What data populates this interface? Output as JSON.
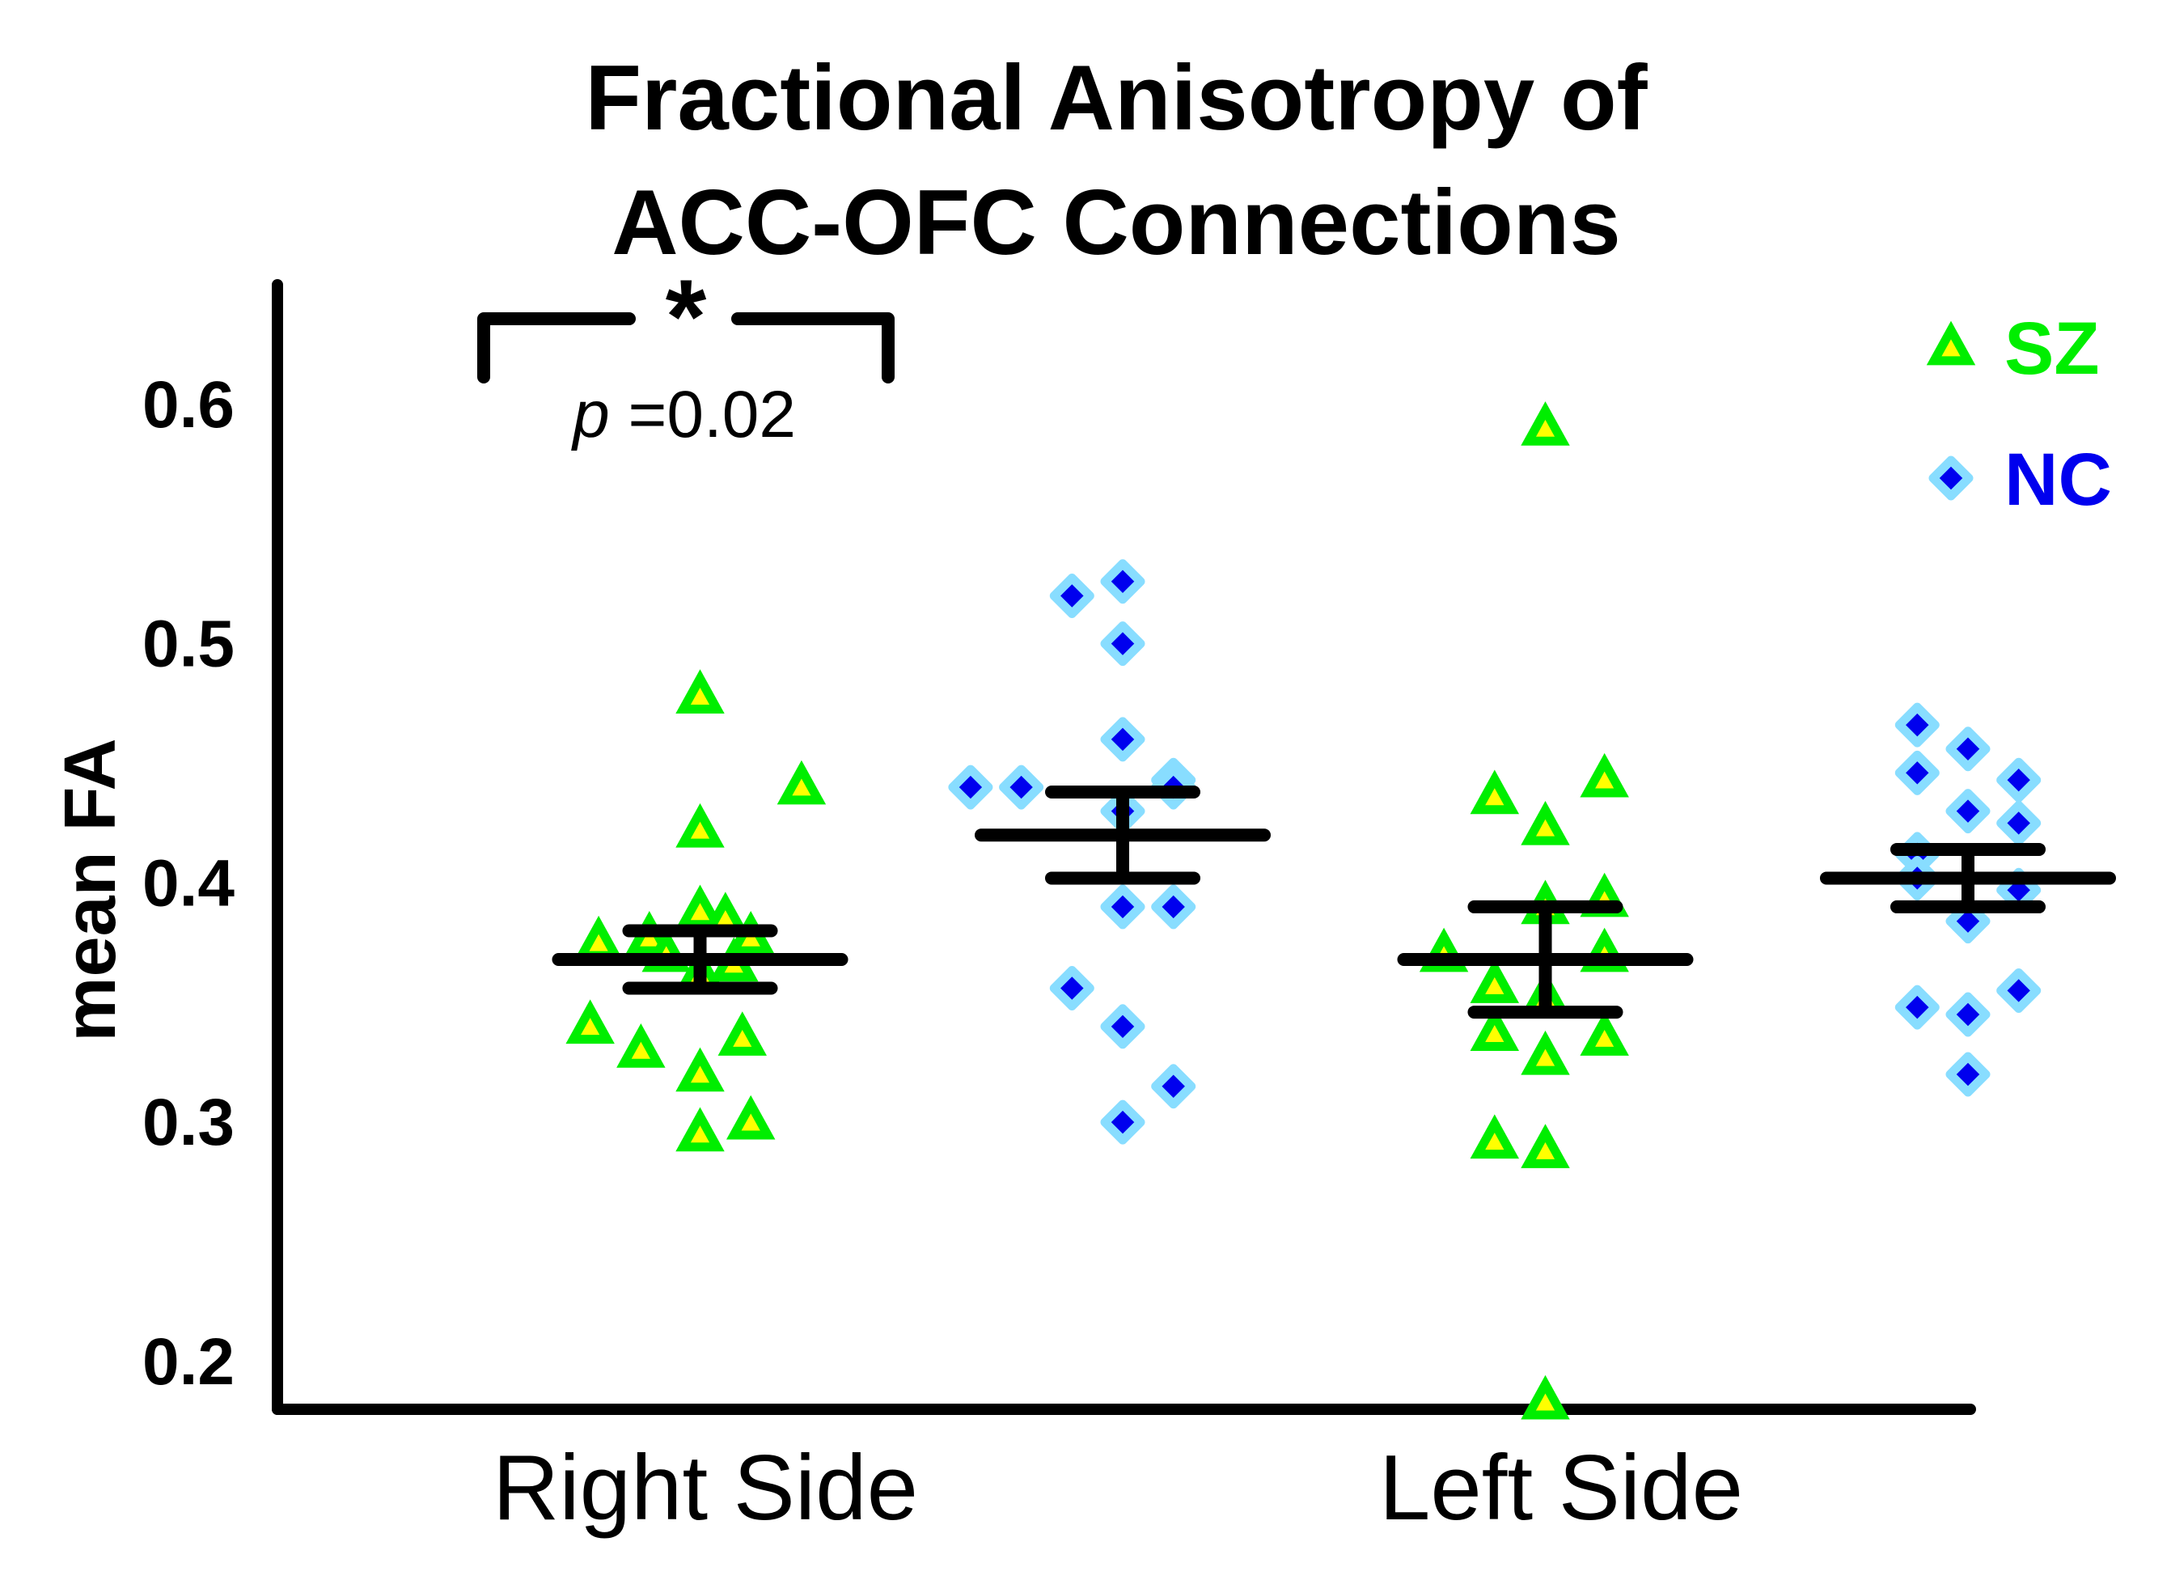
{
  "colors": {
    "sz_fill": "#ffff00",
    "sz_edge": "#00ee00",
    "nc_fill": "#0000ee",
    "nc_edge": "#88ddff",
    "sz_text": "#00ee00",
    "nc_text": "#0000ee",
    "axis": "#000000"
  },
  "chart_data": {
    "type": "scatter",
    "title": [
      "Fractional Anisotropy of",
      "ACC-OFC Connections"
    ],
    "ylabel": "mean FA",
    "xlabel": "",
    "ylim": [
      0.18,
      0.65
    ],
    "yticks": [
      0.2,
      0.3,
      0.4,
      0.5,
      0.6
    ],
    "ytick_labels": [
      "0.2",
      "0.3",
      "0.4",
      "0.5",
      "0.6"
    ],
    "categories": [
      "Right Side",
      "Left Side"
    ],
    "grid": false,
    "legend_position": "top-right",
    "legend": [
      {
        "label": "SZ",
        "marker": "triangle-icon"
      },
      {
        "label": "NC",
        "marker": "diamond-icon"
      }
    ],
    "series": [
      {
        "name": "SZ",
        "marker": "triangle",
        "groups": [
          {
            "category": "Right Side",
            "mean": 0.368,
            "err_low": 0.356,
            "err_high": 0.38,
            "points": [
              {
                "x": 0.74,
                "y": 0.478
              },
              {
                "x": 0.86,
                "y": 0.44
              },
              {
                "x": 0.74,
                "y": 0.422
              },
              {
                "x": 0.74,
                "y": 0.388
              },
              {
                "x": 0.77,
                "y": 0.385
              },
              {
                "x": 0.68,
                "y": 0.377
              },
              {
                "x": 0.8,
                "y": 0.377
              },
              {
                "x": 0.62,
                "y": 0.375
              },
              {
                "x": 0.7,
                "y": 0.37
              },
              {
                "x": 0.78,
                "y": 0.366
              },
              {
                "x": 0.74,
                "y": 0.362
              },
              {
                "x": 0.61,
                "y": 0.34
              },
              {
                "x": 0.79,
                "y": 0.335
              },
              {
                "x": 0.67,
                "y": 0.33
              },
              {
                "x": 0.74,
                "y": 0.32
              },
              {
                "x": 0.8,
                "y": 0.3
              },
              {
                "x": 0.74,
                "y": 0.295
              }
            ]
          },
          {
            "category": "Left Side",
            "mean": 0.368,
            "err_low": 0.346,
            "err_high": 0.39,
            "points": [
              {
                "x": 1.74,
                "y": 0.59
              },
              {
                "x": 1.81,
                "y": 0.443
              },
              {
                "x": 1.68,
                "y": 0.436
              },
              {
                "x": 1.74,
                "y": 0.423
              },
              {
                "x": 1.81,
                "y": 0.393
              },
              {
                "x": 1.74,
                "y": 0.39
              },
              {
                "x": 1.62,
                "y": 0.37
              },
              {
                "x": 1.81,
                "y": 0.37
              },
              {
                "x": 1.68,
                "y": 0.357
              },
              {
                "x": 1.74,
                "y": 0.352
              },
              {
                "x": 1.68,
                "y": 0.337
              },
              {
                "x": 1.81,
                "y": 0.335
              },
              {
                "x": 1.74,
                "y": 0.327
              },
              {
                "x": 1.68,
                "y": 0.292
              },
              {
                "x": 1.74,
                "y": 0.288
              },
              {
                "x": 1.74,
                "y": 0.183
              }
            ]
          }
        ]
      },
      {
        "name": "NC",
        "marker": "diamond",
        "groups": [
          {
            "category": "Right Side",
            "mean": 0.42,
            "err_low": 0.402,
            "err_high": 0.438,
            "points": [
              {
                "x": 1.24,
                "y": 0.526
              },
              {
                "x": 1.18,
                "y": 0.52
              },
              {
                "x": 1.24,
                "y": 0.5
              },
              {
                "x": 1.24,
                "y": 0.46
              },
              {
                "x": 1.3,
                "y": 0.443
              },
              {
                "x": 1.06,
                "y": 0.44
              },
              {
                "x": 1.12,
                "y": 0.44
              },
              {
                "x": 1.3,
                "y": 0.44
              },
              {
                "x": 1.24,
                "y": 0.43
              },
              {
                "x": 1.24,
                "y": 0.39
              },
              {
                "x": 1.3,
                "y": 0.39
              },
              {
                "x": 1.18,
                "y": 0.356
              },
              {
                "x": 1.24,
                "y": 0.34
              },
              {
                "x": 1.3,
                "y": 0.315
              },
              {
                "x": 1.24,
                "y": 0.3
              }
            ]
          },
          {
            "category": "Left Side",
            "mean": 0.402,
            "err_low": 0.39,
            "err_high": 0.414,
            "points": [
              {
                "x": 2.18,
                "y": 0.466
              },
              {
                "x": 2.24,
                "y": 0.456
              },
              {
                "x": 2.18,
                "y": 0.446
              },
              {
                "x": 2.3,
                "y": 0.443
              },
              {
                "x": 2.24,
                "y": 0.43
              },
              {
                "x": 2.3,
                "y": 0.425
              },
              {
                "x": 2.18,
                "y": 0.412
              },
              {
                "x": 2.18,
                "y": 0.402
              },
              {
                "x": 2.3,
                "y": 0.397
              },
              {
                "x": 2.24,
                "y": 0.384
              },
              {
                "x": 2.18,
                "y": 0.348
              },
              {
                "x": 2.24,
                "y": 0.345
              },
              {
                "x": 2.3,
                "y": 0.355
              },
              {
                "x": 2.24,
                "y": 0.32
              }
            ]
          }
        ]
      }
    ],
    "annotations": {
      "significance": {
        "star": "*",
        "p_letter": "p",
        "p_text": " =0.02",
        "between": [
          "SZ Right Side",
          "NC Right Side"
        ]
      }
    }
  }
}
